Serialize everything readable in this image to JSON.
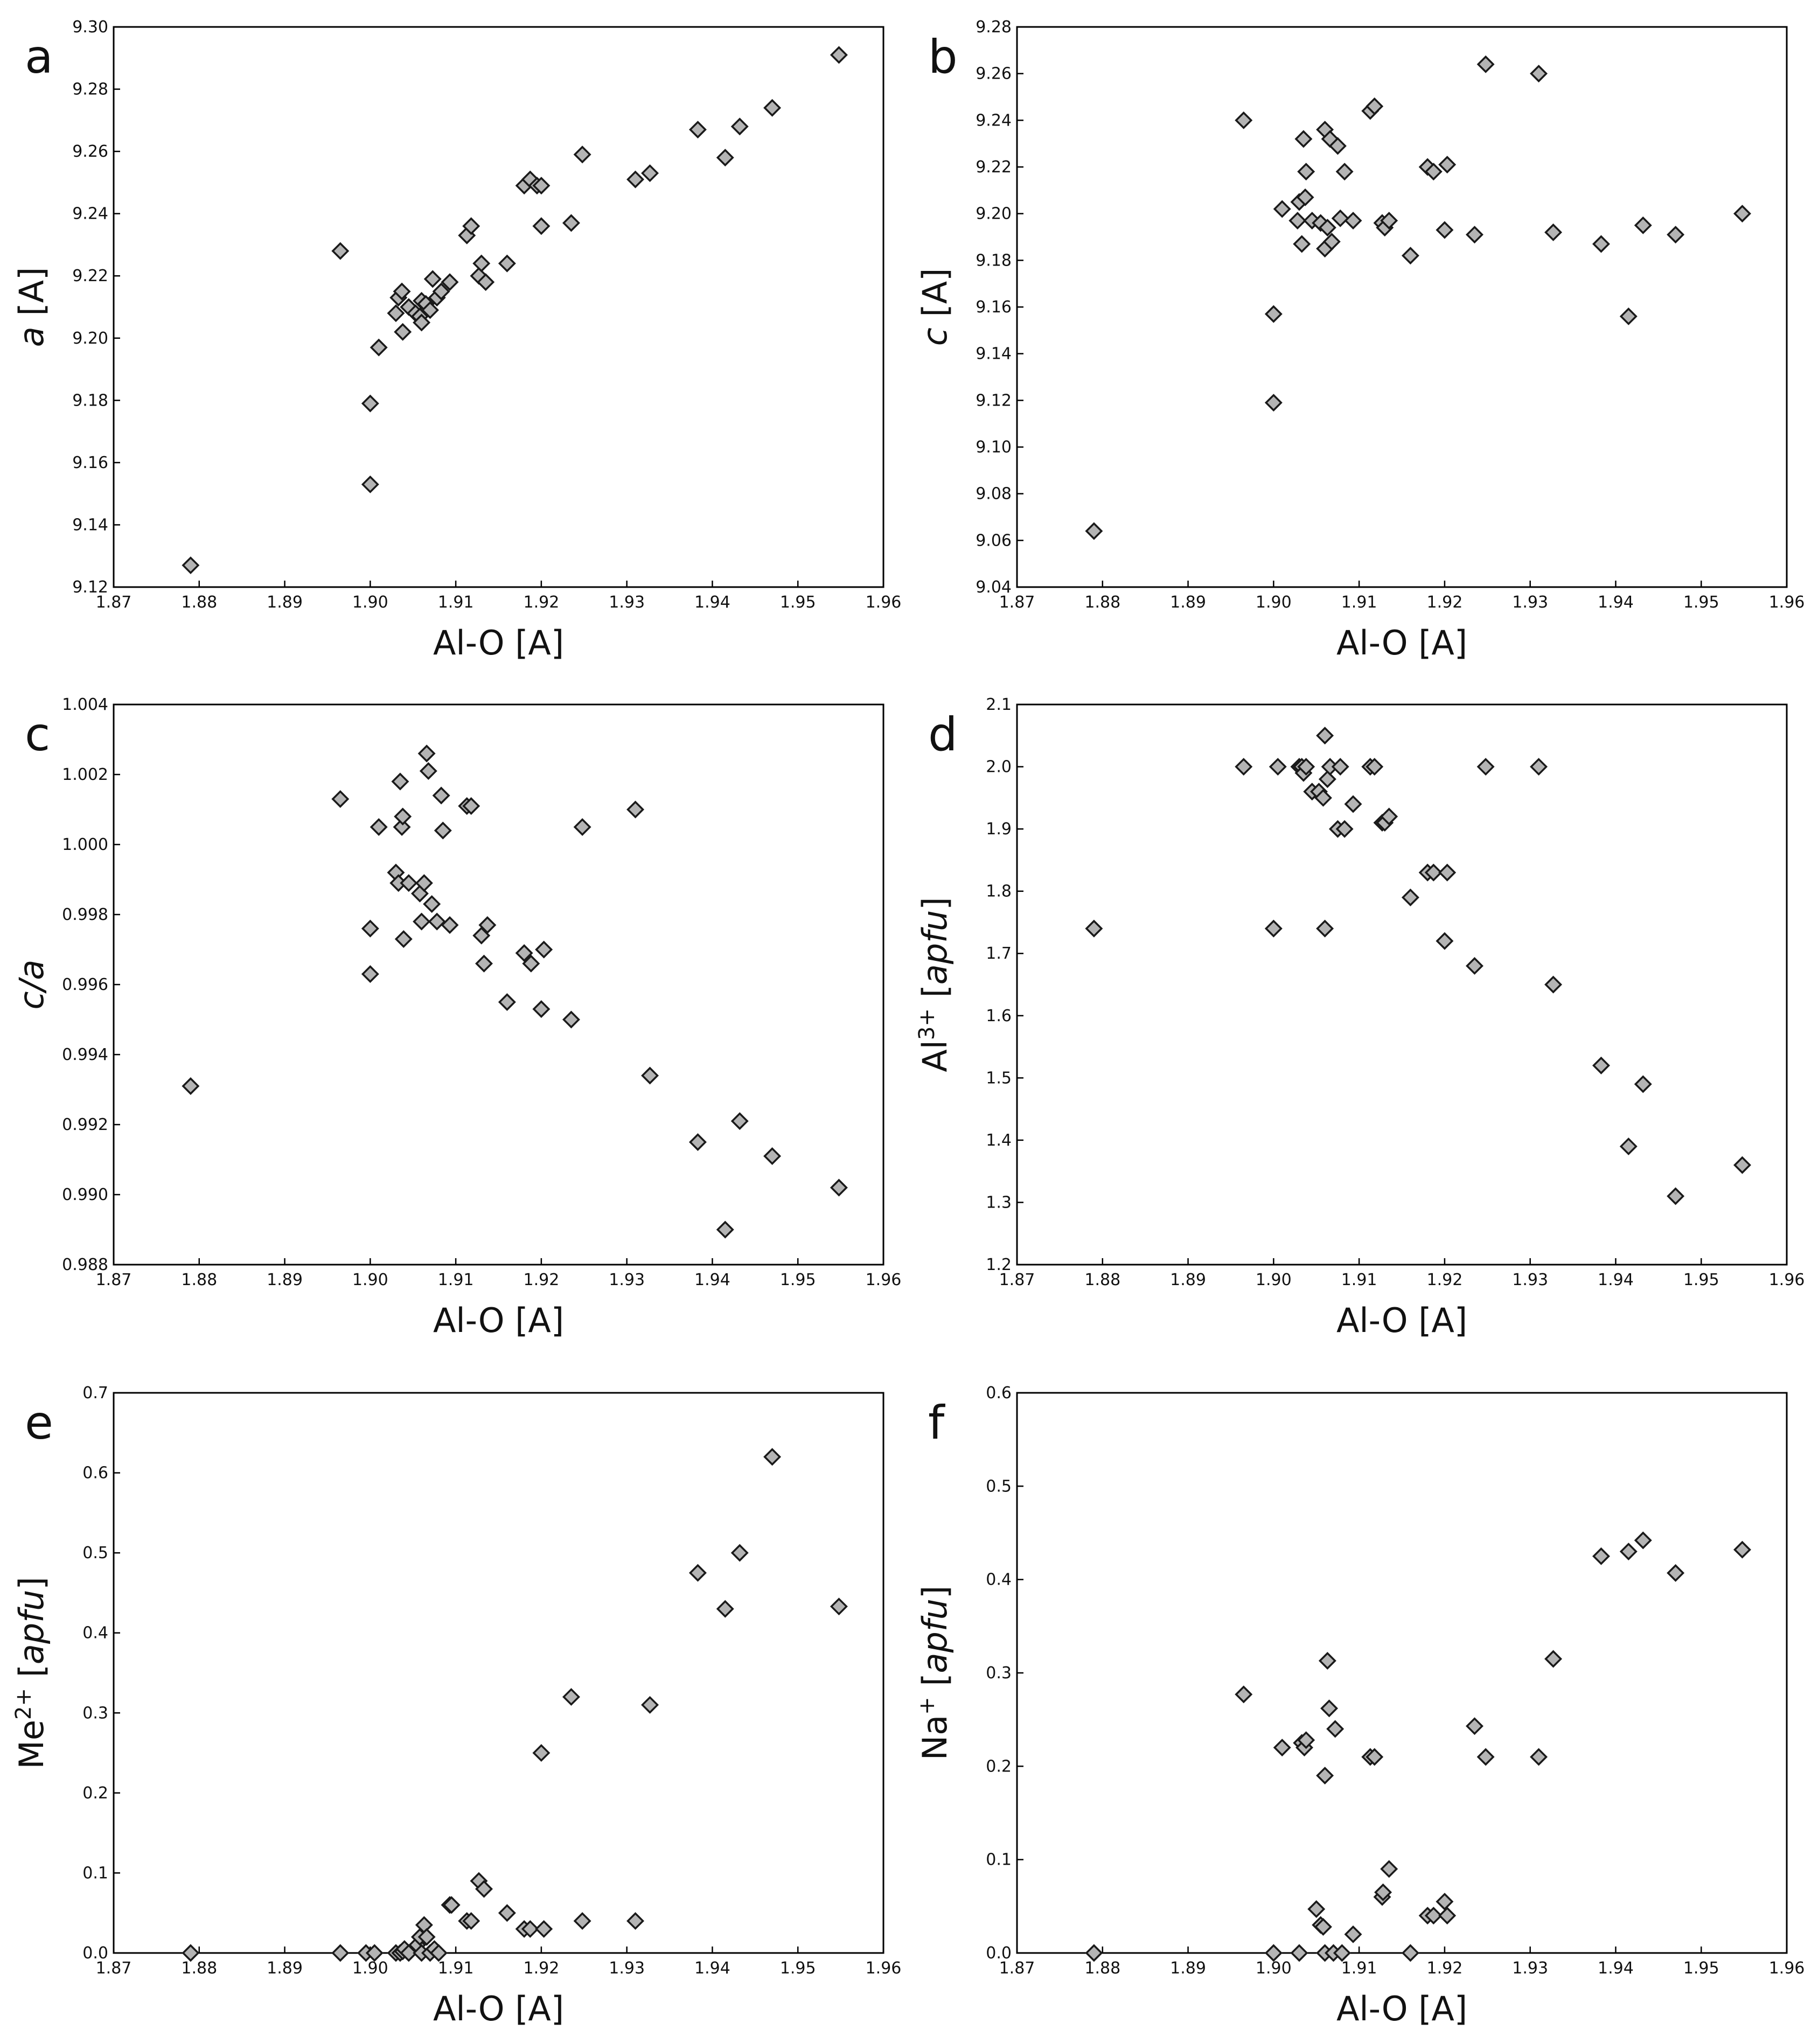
{
  "figure": {
    "panel_count": 6,
    "marker": "diamond",
    "marker_fill": "#b4b4b4",
    "marker_edge": "#1a1a1a"
  },
  "chart_data": [
    {
      "id": "a",
      "panel_label": "a",
      "type": "scatter",
      "xlabel": "Al-O [A]",
      "ylabel_parts": [
        {
          "t": "a",
          "style": "italic"
        },
        {
          "t": " [A]"
        }
      ],
      "xlim": [
        1.87,
        1.96
      ],
      "ylim": [
        9.12,
        9.3
      ],
      "x_ticks": [
        "1.87",
        "1.88",
        "1.89",
        "1.90",
        "1.91",
        "1.92",
        "1.93",
        "1.94",
        "1.95",
        "1.96"
      ],
      "y_ticks": [
        "9.12",
        "9.14",
        "9.16",
        "9.18",
        "9.20",
        "9.22",
        "9.24",
        "9.26",
        "9.28",
        "9.30"
      ],
      "points": [
        [
          1.879,
          9.127
        ],
        [
          1.8965,
          9.228
        ],
        [
          1.9,
          9.179
        ],
        [
          1.9,
          9.153
        ],
        [
          1.901,
          9.197
        ],
        [
          1.903,
          9.208
        ],
        [
          1.9033,
          9.213
        ],
        [
          1.9037,
          9.215
        ],
        [
          1.9038,
          9.202
        ],
        [
          1.9045,
          9.21
        ],
        [
          1.9053,
          9.208
        ],
        [
          1.9058,
          9.207
        ],
        [
          1.906,
          9.212
        ],
        [
          1.906,
          9.205
        ],
        [
          1.9065,
          9.211
        ],
        [
          1.907,
          9.209
        ],
        [
          1.9073,
          9.219
        ],
        [
          1.9078,
          9.213
        ],
        [
          1.9083,
          9.215
        ],
        [
          1.9093,
          9.218
        ],
        [
          1.9113,
          9.233
        ],
        [
          1.9118,
          9.236
        ],
        [
          1.9127,
          9.22
        ],
        [
          1.913,
          9.224
        ],
        [
          1.9135,
          9.218
        ],
        [
          1.916,
          9.224
        ],
        [
          1.918,
          9.249
        ],
        [
          1.9187,
          9.251
        ],
        [
          1.9195,
          9.249
        ],
        [
          1.92,
          9.236
        ],
        [
          1.92,
          9.249
        ],
        [
          1.9235,
          9.237
        ],
        [
          1.9248,
          9.259
        ],
        [
          1.931,
          9.251
        ],
        [
          1.9327,
          9.253
        ],
        [
          1.9383,
          9.267
        ],
        [
          1.9415,
          9.258
        ],
        [
          1.9432,
          9.268
        ],
        [
          1.947,
          9.274
        ],
        [
          1.9548,
          9.291
        ]
      ]
    },
    {
      "id": "b",
      "panel_label": "b",
      "type": "scatter",
      "xlabel": "Al-O [A]",
      "ylabel_parts": [
        {
          "t": "c",
          "style": "italic"
        },
        {
          "t": " [A]"
        }
      ],
      "xlim": [
        1.87,
        1.96
      ],
      "ylim": [
        9.04,
        9.28
      ],
      "x_ticks": [
        "1.87",
        "1.88",
        "1.89",
        "1.90",
        "1.91",
        "1.92",
        "1.93",
        "1.94",
        "1.95",
        "1.96"
      ],
      "y_ticks": [
        "9.04",
        "9.06",
        "9.08",
        "9.10",
        "9.12",
        "9.14",
        "9.16",
        "9.18",
        "9.20",
        "9.22",
        "9.24",
        "9.26",
        "9.28"
      ],
      "points": [
        [
          1.879,
          9.064
        ],
        [
          1.8965,
          9.24
        ],
        [
          1.9,
          9.157
        ],
        [
          1.9,
          9.119
        ],
        [
          1.901,
          9.202
        ],
        [
          1.9028,
          9.197
        ],
        [
          1.903,
          9.205
        ],
        [
          1.9033,
          9.187
        ],
        [
          1.9035,
          9.232
        ],
        [
          1.9037,
          9.207
        ],
        [
          1.9038,
          9.218
        ],
        [
          1.9045,
          9.197
        ],
        [
          1.9055,
          9.196
        ],
        [
          1.906,
          9.236
        ],
        [
          1.906,
          9.185
        ],
        [
          1.9063,
          9.194
        ],
        [
          1.9066,
          9.232
        ],
        [
          1.9068,
          9.188
        ],
        [
          1.9075,
          9.229
        ],
        [
          1.9078,
          9.198
        ],
        [
          1.9083,
          9.218
        ],
        [
          1.9093,
          9.197
        ],
        [
          1.9113,
          9.244
        ],
        [
          1.9118,
          9.246
        ],
        [
          1.9127,
          9.196
        ],
        [
          1.913,
          9.194
        ],
        [
          1.9135,
          9.197
        ],
        [
          1.916,
          9.182
        ],
        [
          1.918,
          9.22
        ],
        [
          1.9187,
          9.218
        ],
        [
          1.92,
          9.193
        ],
        [
          1.9203,
          9.221
        ],
        [
          1.9235,
          9.191
        ],
        [
          1.9248,
          9.264
        ],
        [
          1.931,
          9.26
        ],
        [
          1.9327,
          9.192
        ],
        [
          1.9383,
          9.187
        ],
        [
          1.9415,
          9.156
        ],
        [
          1.9432,
          9.195
        ],
        [
          1.947,
          9.191
        ],
        [
          1.9548,
          9.2
        ]
      ]
    },
    {
      "id": "c",
      "panel_label": "c",
      "type": "scatter",
      "xlabel": "Al-O [A]",
      "ylabel_parts": [
        {
          "t": "c/a",
          "style": "italic"
        }
      ],
      "xlim": [
        1.87,
        1.96
      ],
      "ylim": [
        0.988,
        1.004
      ],
      "x_ticks": [
        "1.87",
        "1.88",
        "1.89",
        "1.90",
        "1.91",
        "1.92",
        "1.93",
        "1.94",
        "1.95",
        "1.96"
      ],
      "y_ticks": [
        "0.988",
        "0.990",
        "0.992",
        "0.994",
        "0.996",
        "0.998",
        "1.000",
        "1.002",
        "1.004"
      ],
      "points": [
        [
          1.879,
          0.9931
        ],
        [
          1.8965,
          1.0013
        ],
        [
          1.9,
          0.9976
        ],
        [
          1.9,
          0.9963
        ],
        [
          1.901,
          1.0005
        ],
        [
          1.903,
          0.9992
        ],
        [
          1.9033,
          0.9989
        ],
        [
          1.9035,
          1.0018
        ],
        [
          1.9037,
          1.0005
        ],
        [
          1.9038,
          1.0008
        ],
        [
          1.9039,
          0.9973
        ],
        [
          1.9045,
          0.9989
        ],
        [
          1.9058,
          0.9986
        ],
        [
          1.906,
          0.9978
        ],
        [
          1.9063,
          0.9989
        ],
        [
          1.9066,
          1.0026
        ],
        [
          1.9068,
          1.0021
        ],
        [
          1.9072,
          0.9983
        ],
        [
          1.9078,
          0.9978
        ],
        [
          1.9083,
          1.0014
        ],
        [
          1.9085,
          1.0004
        ],
        [
          1.9093,
          0.9977
        ],
        [
          1.9113,
          1.0011
        ],
        [
          1.9118,
          1.0011
        ],
        [
          1.913,
          0.9974
        ],
        [
          1.9133,
          0.9966
        ],
        [
          1.9137,
          0.9977
        ],
        [
          1.916,
          0.9955
        ],
        [
          1.918,
          0.9969
        ],
        [
          1.9188,
          0.9966
        ],
        [
          1.92,
          0.9953
        ],
        [
          1.9203,
          0.997
        ],
        [
          1.9235,
          0.995
        ],
        [
          1.9248,
          1.0005
        ],
        [
          1.931,
          1.001
        ],
        [
          1.9327,
          0.9934
        ],
        [
          1.9383,
          0.9915
        ],
        [
          1.9415,
          0.989
        ],
        [
          1.9432,
          0.9921
        ],
        [
          1.947,
          0.9911
        ],
        [
          1.9548,
          0.9902
        ]
      ]
    },
    {
      "id": "d",
      "panel_label": "d",
      "type": "scatter",
      "xlabel": "Al-O [A]",
      "ylabel_parts": [
        {
          "t": "Al"
        },
        {
          "t": "3+",
          "style": "sup"
        },
        {
          "t": " ["
        },
        {
          "t": "apfu",
          "style": "italic"
        },
        {
          "t": "]"
        }
      ],
      "xlim": [
        1.87,
        1.96
      ],
      "ylim": [
        1.2,
        2.1
      ],
      "x_ticks": [
        "1.87",
        "1.88",
        "1.89",
        "1.90",
        "1.91",
        "1.92",
        "1.93",
        "1.94",
        "1.95",
        "1.96"
      ],
      "y_ticks": [
        "1.2",
        "1.3",
        "1.4",
        "1.5",
        "1.6",
        "1.7",
        "1.8",
        "1.9",
        "2.0",
        "2.1"
      ],
      "points": [
        [
          1.879,
          1.74
        ],
        [
          1.8965,
          2.0
        ],
        [
          1.9,
          1.74
        ],
        [
          1.9005,
          2.0
        ],
        [
          1.903,
          2.0
        ],
        [
          1.9033,
          2.0
        ],
        [
          1.9035,
          1.99
        ],
        [
          1.9038,
          2.0
        ],
        [
          1.9045,
          1.96
        ],
        [
          1.9053,
          1.96
        ],
        [
          1.9058,
          1.95
        ],
        [
          1.906,
          2.05
        ],
        [
          1.906,
          1.74
        ],
        [
          1.9063,
          1.98
        ],
        [
          1.9066,
          2.0
        ],
        [
          1.9075,
          1.9
        ],
        [
          1.9078,
          2.0
        ],
        [
          1.9083,
          1.9
        ],
        [
          1.9093,
          1.94
        ],
        [
          1.9113,
          2.0
        ],
        [
          1.9118,
          2.0
        ],
        [
          1.9127,
          1.91
        ],
        [
          1.913,
          1.91
        ],
        [
          1.9135,
          1.92
        ],
        [
          1.916,
          1.79
        ],
        [
          1.918,
          1.83
        ],
        [
          1.9187,
          1.83
        ],
        [
          1.92,
          1.72
        ],
        [
          1.9203,
          1.83
        ],
        [
          1.9235,
          1.68
        ],
        [
          1.9248,
          2.0
        ],
        [
          1.931,
          2.0
        ],
        [
          1.9327,
          1.65
        ],
        [
          1.9383,
          1.52
        ],
        [
          1.9415,
          1.39
        ],
        [
          1.9432,
          1.49
        ],
        [
          1.947,
          1.31
        ],
        [
          1.9548,
          1.36
        ]
      ]
    },
    {
      "id": "e",
      "panel_label": "e",
      "type": "scatter",
      "xlabel": "Al-O [A]",
      "ylabel_parts": [
        {
          "t": "Me"
        },
        {
          "t": "2+",
          "style": "sup"
        },
        {
          "t": " ["
        },
        {
          "t": "apfu",
          "style": "italic"
        },
        {
          "t": "]"
        }
      ],
      "xlim": [
        1.87,
        1.96
      ],
      "ylim": [
        0.0,
        0.7
      ],
      "x_ticks": [
        "1.87",
        "1.88",
        "1.89",
        "1.90",
        "1.91",
        "1.92",
        "1.93",
        "1.94",
        "1.95",
        "1.96"
      ],
      "y_ticks": [
        "0.0",
        "0.1",
        "0.2",
        "0.3",
        "0.4",
        "0.5",
        "0.6",
        "0.7"
      ],
      "points": [
        [
          1.879,
          0.0
        ],
        [
          1.8965,
          0.0
        ],
        [
          1.8995,
          0.0
        ],
        [
          1.9005,
          0.0
        ],
        [
          1.903,
          0.0
        ],
        [
          1.9035,
          0.0
        ],
        [
          1.9038,
          0.002
        ],
        [
          1.904,
          0.005
        ],
        [
          1.9045,
          0.0
        ],
        [
          1.9055,
          0.01
        ],
        [
          1.9058,
          0.02
        ],
        [
          1.906,
          0.0
        ],
        [
          1.9063,
          0.035
        ],
        [
          1.9066,
          0.02
        ],
        [
          1.907,
          0.0
        ],
        [
          1.9075,
          0.005
        ],
        [
          1.908,
          0.0
        ],
        [
          1.9093,
          0.06
        ],
        [
          1.9095,
          0.06
        ],
        [
          1.9113,
          0.04
        ],
        [
          1.9118,
          0.04
        ],
        [
          1.9127,
          0.09
        ],
        [
          1.9133,
          0.08
        ],
        [
          1.916,
          0.05
        ],
        [
          1.918,
          0.03
        ],
        [
          1.9187,
          0.03
        ],
        [
          1.92,
          0.25
        ],
        [
          1.9203,
          0.03
        ],
        [
          1.9235,
          0.32
        ],
        [
          1.9248,
          0.04
        ],
        [
          1.931,
          0.04
        ],
        [
          1.9327,
          0.31
        ],
        [
          1.9383,
          0.475
        ],
        [
          1.9415,
          0.43
        ],
        [
          1.9432,
          0.5
        ],
        [
          1.947,
          0.62
        ],
        [
          1.9548,
          0.433
        ]
      ]
    },
    {
      "id": "f",
      "panel_label": "f",
      "type": "scatter",
      "xlabel": "Al-O [A]",
      "ylabel_parts": [
        {
          "t": "Na"
        },
        {
          "t": "+",
          "style": "sup"
        },
        {
          "t": " ["
        },
        {
          "t": "apfu",
          "style": "italic"
        },
        {
          "t": "]"
        }
      ],
      "xlim": [
        1.87,
        1.96
      ],
      "ylim": [
        0.0,
        0.6
      ],
      "x_ticks": [
        "1.87",
        "1.88",
        "1.89",
        "1.90",
        "1.91",
        "1.92",
        "1.93",
        "1.94",
        "1.95",
        "1.96"
      ],
      "y_ticks": [
        "0.0",
        "0.1",
        "0.2",
        "0.3",
        "0.4",
        "0.5",
        "0.6"
      ],
      "points": [
        [
          1.879,
          0.0
        ],
        [
          1.8965,
          0.277
        ],
        [
          1.9,
          0.0
        ],
        [
          1.901,
          0.22
        ],
        [
          1.903,
          0.0
        ],
        [
          1.9033,
          0.225
        ],
        [
          1.9036,
          0.22
        ],
        [
          1.9038,
          0.228
        ],
        [
          1.905,
          0.047
        ],
        [
          1.9055,
          0.03
        ],
        [
          1.9058,
          0.028
        ],
        [
          1.906,
          0.0
        ],
        [
          1.906,
          0.19
        ],
        [
          1.9063,
          0.313
        ],
        [
          1.9065,
          0.262
        ],
        [
          1.907,
          0.0
        ],
        [
          1.9072,
          0.24
        ],
        [
          1.908,
          0.0
        ],
        [
          1.9093,
          0.02
        ],
        [
          1.9113,
          0.21
        ],
        [
          1.9118,
          0.21
        ],
        [
          1.9127,
          0.06
        ],
        [
          1.9128,
          0.065
        ],
        [
          1.9135,
          0.09
        ],
        [
          1.916,
          0.0
        ],
        [
          1.918,
          0.04
        ],
        [
          1.9187,
          0.04
        ],
        [
          1.92,
          0.055
        ],
        [
          1.9203,
          0.04
        ],
        [
          1.9235,
          0.243
        ],
        [
          1.9248,
          0.21
        ],
        [
          1.931,
          0.21
        ],
        [
          1.9327,
          0.315
        ],
        [
          1.9383,
          0.425
        ],
        [
          1.9415,
          0.43
        ],
        [
          1.9432,
          0.442
        ],
        [
          1.947,
          0.407
        ],
        [
          1.9548,
          0.432
        ]
      ]
    }
  ]
}
